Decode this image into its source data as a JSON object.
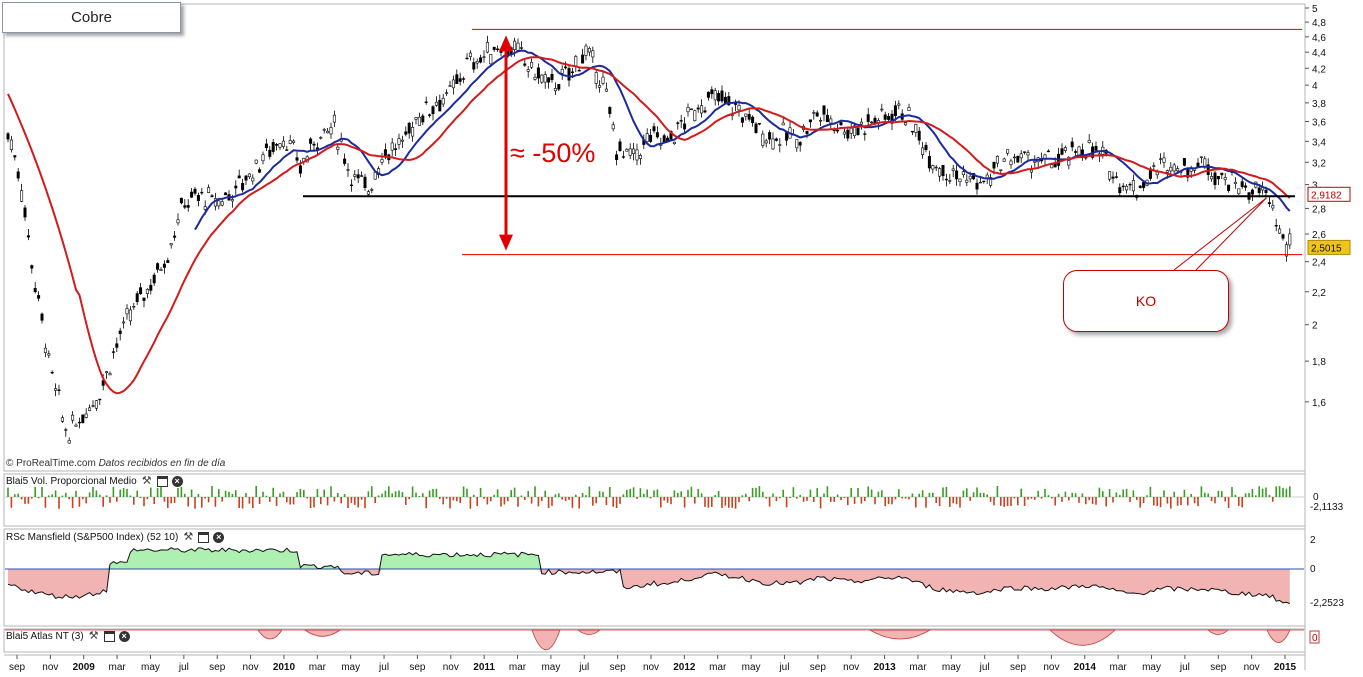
{
  "title": "Cobre",
  "watermark_prefix": "© ProRealTime.com",
  "watermark_text": "Datos recibidos en fin de día",
  "annotations": {
    "drop_label": "≈ -50%",
    "ko_label": "KO"
  },
  "colors": {
    "candle": "#000000",
    "ma_fast": "#1c2aa0",
    "ma_slow": "#d21b1b",
    "red_line": "#e00000",
    "support": "#000000",
    "vol_up": "#3a9d23",
    "vol_down": "#c9421b",
    "rs_pos_fill": "#aef0b2",
    "rs_neg_fill": "#f2b3b3",
    "price_tag_red": "#c00000",
    "price_tag_yellow": "#f0c419"
  },
  "panels": {
    "volume": {
      "label": "Blai5 Vol. Proporcional Medio",
      "axis_labels": [
        "0",
        "-2,1133"
      ]
    },
    "mansfield": {
      "label": "RSc Mansfield (S&P500 Index) (52 10)",
      "axis_labels": [
        "2",
        "0",
        "-2,2523"
      ]
    },
    "atlas": {
      "label": "Blai5 Atlas NT (3)",
      "axis_labels": [
        "0"
      ]
    }
  },
  "chart_data": {
    "type": "line",
    "title": "Cobre",
    "x_ticks": [
      "sep",
      "nov",
      "2009",
      "mar",
      "may",
      "jul",
      "sep",
      "nov",
      "2010",
      "mar",
      "may",
      "jul",
      "sep",
      "nov",
      "2011",
      "mar",
      "may",
      "jul",
      "sep",
      "nov",
      "2012",
      "mar",
      "may",
      "jul",
      "sep",
      "nov",
      "2013",
      "mar",
      "may",
      "jul",
      "sep",
      "nov",
      "2014",
      "mar",
      "may",
      "jul",
      "sep",
      "nov",
      "2015"
    ],
    "y_ticks": [
      "5",
      "4,8",
      "4,6",
      "4,4",
      "4,2",
      "4",
      "3,8",
      "3,6",
      "3,4",
      "3,2",
      "3",
      "2,8",
      "2,6",
      "2,4",
      "2,2",
      "2",
      "1,8",
      "1,6"
    ],
    "ylim": [
      1.4,
      5.0
    ],
    "y_scale": "log",
    "last_price": "2,5015",
    "ma_last": "2,9182",
    "levels": {
      "resistance_top": 4.7,
      "support": 2.9,
      "ko_low": 2.45
    },
    "series": [
      {
        "x": [
          "2008-08",
          "2008-09",
          "2008-10",
          "2008-11",
          "2008-12",
          "2009-01",
          "2009-02",
          "2009-03",
          "2009-04",
          "2009-05",
          "2009-06",
          "2009-07",
          "2009-08",
          "2009-09",
          "2009-10",
          "2009-11",
          "2009-12",
          "2010-01",
          "2010-02",
          "2010-03",
          "2010-04",
          "2010-05",
          "2010-06",
          "2010-07",
          "2010-08",
          "2010-09",
          "2010-10",
          "2010-11",
          "2010-12",
          "2011-01",
          "2011-02",
          "2011-03",
          "2011-04",
          "2011-05",
          "2011-06",
          "2011-07",
          "2011-08",
          "2011-09",
          "2011-10",
          "2011-11",
          "2011-12",
          "2012-01",
          "2012-02",
          "2012-03",
          "2012-04",
          "2012-05",
          "2012-06",
          "2012-07",
          "2012-08",
          "2012-09",
          "2012-10",
          "2012-11",
          "2012-12",
          "2013-01",
          "2013-02",
          "2013-03",
          "2013-04",
          "2013-05",
          "2013-06",
          "2013-07",
          "2013-08",
          "2013-09",
          "2013-10",
          "2013-11",
          "2013-12",
          "2014-01",
          "2014-02",
          "2014-03",
          "2014-04",
          "2014-05",
          "2014-06",
          "2014-07",
          "2014-08",
          "2014-09",
          "2014-10",
          "2014-11",
          "2014-12",
          "2015-01"
        ],
        "values": [
          3.7,
          3.2,
          2.3,
          1.75,
          1.45,
          1.55,
          1.65,
          1.9,
          2.1,
          2.25,
          2.45,
          2.85,
          2.9,
          2.85,
          2.95,
          3.1,
          3.3,
          3.45,
          3.15,
          3.45,
          3.55,
          3.1,
          2.95,
          3.3,
          3.35,
          3.65,
          3.8,
          3.9,
          4.25,
          4.35,
          4.5,
          4.4,
          4.15,
          4.0,
          4.1,
          4.4,
          4.1,
          3.3,
          3.25,
          3.45,
          3.4,
          3.6,
          3.8,
          3.85,
          3.75,
          3.6,
          3.45,
          3.45,
          3.45,
          3.7,
          3.6,
          3.5,
          3.6,
          3.65,
          3.75,
          3.45,
          3.2,
          3.1,
          3.05,
          3.0,
          3.2,
          3.25,
          3.2,
          3.2,
          3.25,
          3.35,
          3.25,
          3.05,
          2.95,
          3.1,
          3.2,
          3.15,
          3.2,
          3.1,
          3.0,
          2.95,
          2.9,
          2.5
        ]
      }
    ]
  }
}
